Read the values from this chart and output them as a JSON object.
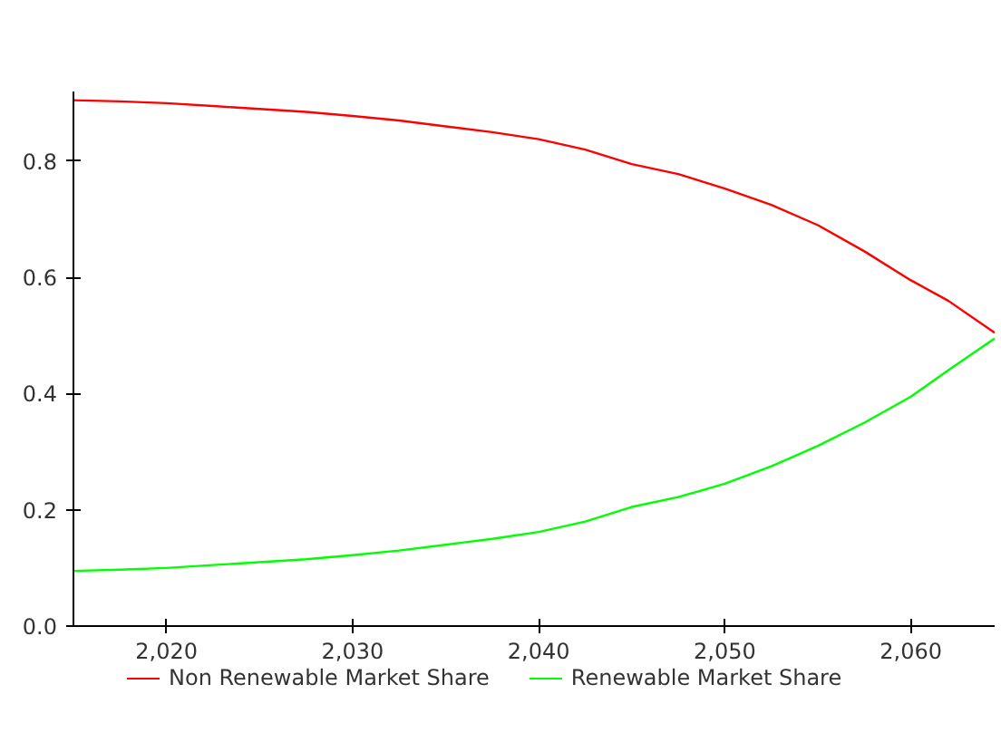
{
  "chart_data": {
    "type": "line",
    "x": [
      2015,
      2017.5,
      2020,
      2022.5,
      2025,
      2027.5,
      2030,
      2032.5,
      2035,
      2037.5,
      2040,
      2042.5,
      2045,
      2047.5,
      2050,
      2052.5,
      2055,
      2057.5,
      2060,
      2062,
      2064.5
    ],
    "series": [
      {
        "name": "Non Renewable Market Share",
        "color": "#ff0000",
        "values": [
          0.905,
          0.903,
          0.9,
          0.895,
          0.89,
          0.885,
          0.878,
          0.87,
          0.86,
          0.85,
          0.838,
          0.82,
          0.795,
          0.778,
          0.753,
          0.725,
          0.69,
          0.645,
          0.595,
          0.56,
          0.505
        ]
      },
      {
        "name": "Renewable Market Share",
        "color": "#00ff00",
        "values": [
          0.095,
          0.097,
          0.1,
          0.105,
          0.11,
          0.115,
          0.122,
          0.13,
          0.14,
          0.15,
          0.162,
          0.18,
          0.205,
          0.222,
          0.245,
          0.275,
          0.31,
          0.35,
          0.395,
          0.44,
          0.495
        ]
      }
    ],
    "xlim": [
      2015,
      2064.5
    ],
    "ylim": [
      0,
      0.92
    ],
    "xticks": [
      {
        "value": 2020,
        "label": "2,020"
      },
      {
        "value": 2030,
        "label": "2,030"
      },
      {
        "value": 2040,
        "label": "2,040"
      },
      {
        "value": 2050,
        "label": "2,050"
      },
      {
        "value": 2060,
        "label": "2,060"
      }
    ],
    "yticks": [
      {
        "value": 0,
        "label": "0.0"
      },
      {
        "value": 0.2,
        "label": "0.2"
      },
      {
        "value": 0.4,
        "label": "0.4"
      },
      {
        "value": 0.6,
        "label": "0.6"
      },
      {
        "value": 0.8,
        "label": "0.8"
      }
    ],
    "grid": false,
    "legend": "bottom",
    "line_style": "solid"
  }
}
